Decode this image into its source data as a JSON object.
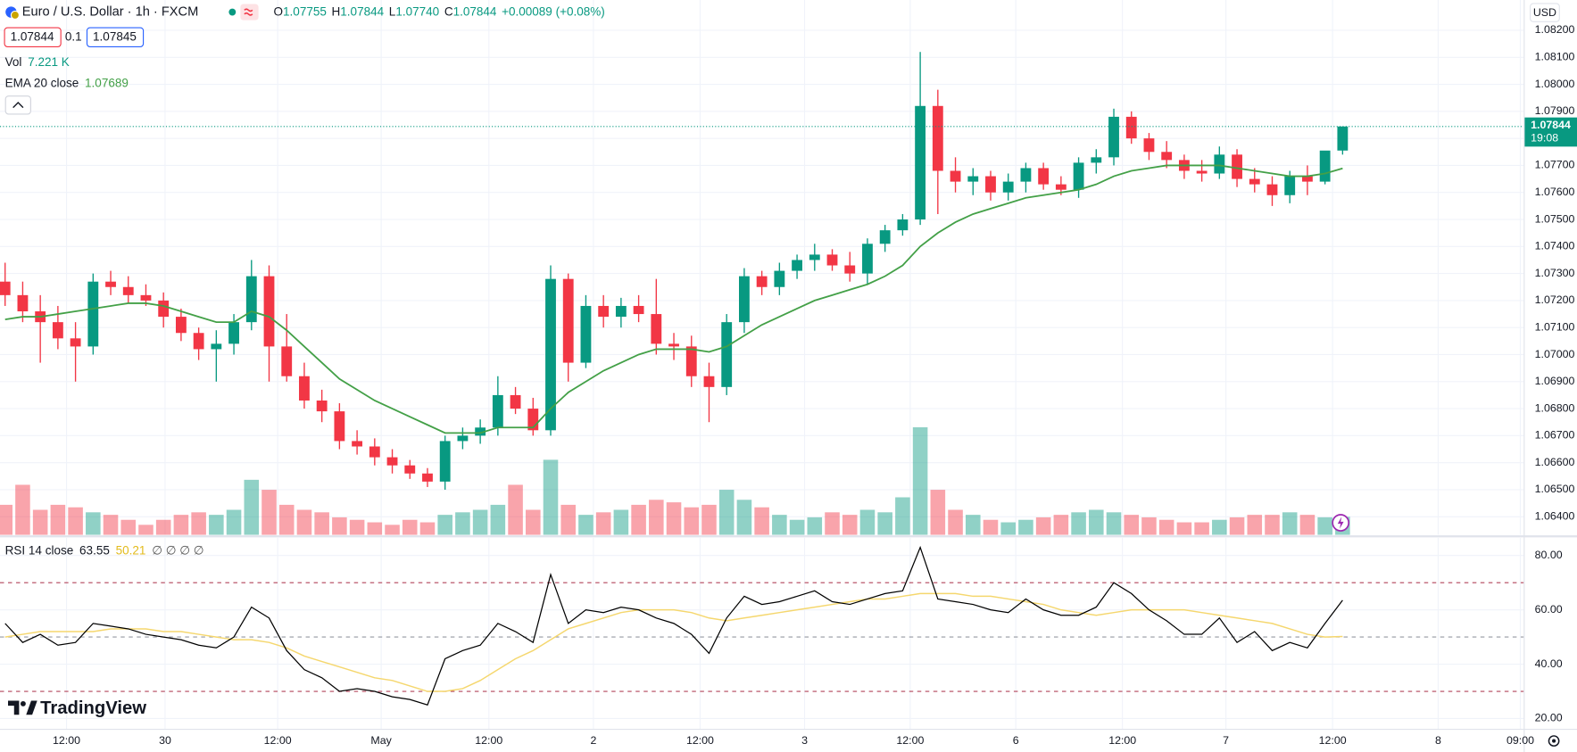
{
  "header": {
    "symbol": "Euro / U.S. Dollar · 1h · FXCM",
    "ohlc": [
      {
        "label": "O",
        "value": "1.07755"
      },
      {
        "label": "H",
        "value": "1.07844"
      },
      {
        "label": "L",
        "value": "1.07740"
      },
      {
        "label": "C",
        "value": "1.07844"
      }
    ],
    "change": "+0.00089 (+0.08%)",
    "bid": "1.07844",
    "spread": "0.1",
    "ask": "1.07845",
    "volume": {
      "label": "Vol",
      "value": "7.221 K"
    },
    "ema": {
      "label": "EMA 20 close",
      "value": "1.07689"
    },
    "currency": "USD",
    "logo": "TradingView"
  },
  "chart_data": [
    {
      "type": "candlestick",
      "xlim": [
        -0.29,
        86.29
      ],
      "ylim": [
        1.06333,
        1.08312
      ],
      "yticks": [
        {
          "value": 1.064,
          "label": "1.06400"
        },
        {
          "value": 1.065,
          "label": "1.06500"
        },
        {
          "value": 1.066,
          "label": "1.06600"
        },
        {
          "value": 1.067,
          "label": "1.06700"
        },
        {
          "value": 1.068,
          "label": "1.06800"
        },
        {
          "value": 1.069,
          "label": "1.06900"
        },
        {
          "value": 1.07,
          "label": "1.07000"
        },
        {
          "value": 1.071,
          "label": "1.07100"
        },
        {
          "value": 1.072,
          "label": "1.07200"
        },
        {
          "value": 1.073,
          "label": "1.07300"
        },
        {
          "value": 1.074,
          "label": "1.07400"
        },
        {
          "value": 1.075,
          "label": "1.07500"
        },
        {
          "value": 1.076,
          "label": "1.07600"
        },
        {
          "value": 1.077,
          "label": "1.07700"
        },
        {
          "value": 1.078,
          "label": "1.07800"
        },
        {
          "value": 1.079,
          "label": "1.07900"
        },
        {
          "value": 1.08,
          "label": "1.08000"
        },
        {
          "value": 1.081,
          "label": "1.08100"
        },
        {
          "value": 1.082,
          "label": "1.08200"
        }
      ],
      "grid": true,
      "up_color": "#089981",
      "down_color": "#f23645",
      "ema_color": "#43a047",
      "open": [
        1.0727,
        1.0722,
        1.0716,
        1.0712,
        1.0706,
        1.0703,
        1.0727,
        1.0725,
        1.0722,
        1.072,
        1.0714,
        1.0708,
        1.0702,
        1.0704,
        1.0712,
        1.0729,
        1.0703,
        1.0692,
        1.0683,
        1.0679,
        1.0668,
        1.0666,
        1.0662,
        1.0659,
        1.0656,
        1.0653,
        1.0668,
        1.067,
        1.0673,
        1.0685,
        1.068,
        1.0672,
        1.0728,
        1.0697,
        1.0718,
        1.0714,
        1.0718,
        1.0715,
        1.0704,
        1.0703,
        1.0692,
        1.0688,
        1.0712,
        1.0729,
        1.0725,
        1.0731,
        1.0735,
        1.0737,
        1.0733,
        1.073,
        1.0741,
        1.0746,
        1.075,
        1.0792,
        1.0768,
        1.0764,
        1.0766,
        1.076,
        1.0764,
        1.0769,
        1.0763,
        1.0761,
        1.0771,
        1.0773,
        1.0788,
        1.078,
        1.0775,
        1.0772,
        1.0768,
        1.0767,
        1.0774,
        1.0765,
        1.0763,
        1.0759,
        1.0766,
        1.0764,
        1.07755
      ],
      "high": [
        1.0734,
        1.0727,
        1.0722,
        1.0718,
        1.0712,
        1.073,
        1.0731,
        1.0729,
        1.0726,
        1.0723,
        1.0717,
        1.071,
        1.0709,
        1.0715,
        1.0735,
        1.0733,
        1.0715,
        1.0697,
        1.0687,
        1.0682,
        1.0672,
        1.0669,
        1.0665,
        1.0661,
        1.0658,
        1.067,
        1.0673,
        1.0676,
        1.0692,
        1.0688,
        1.0684,
        1.0733,
        1.073,
        1.0722,
        1.0722,
        1.0721,
        1.0722,
        1.0728,
        1.0708,
        1.0707,
        1.0697,
        1.0715,
        1.0732,
        1.0731,
        1.0734,
        1.0737,
        1.0741,
        1.0739,
        1.0738,
        1.0743,
        1.0748,
        1.0752,
        1.0812,
        1.0798,
        1.0773,
        1.0769,
        1.0768,
        1.0767,
        1.0771,
        1.0771,
        1.0766,
        1.0773,
        1.0776,
        1.0791,
        1.079,
        1.0782,
        1.0779,
        1.0774,
        1.0772,
        1.0777,
        1.0776,
        1.0769,
        1.0766,
        1.0768,
        1.077,
        1.0775,
        1.07844
      ],
      "low": [
        1.0718,
        1.0712,
        1.0697,
        1.0702,
        1.069,
        1.07,
        1.0722,
        1.0719,
        1.0718,
        1.071,
        1.0705,
        1.0698,
        1.069,
        1.07,
        1.0709,
        1.069,
        1.069,
        1.068,
        1.0675,
        1.0665,
        1.0663,
        1.0659,
        1.0656,
        1.0654,
        1.0651,
        1.065,
        1.0665,
        1.0667,
        1.067,
        1.0678,
        1.067,
        1.067,
        1.069,
        1.0695,
        1.071,
        1.071,
        1.0712,
        1.07,
        1.0698,
        1.0688,
        1.0675,
        1.0685,
        1.0708,
        1.0722,
        1.0722,
        1.0728,
        1.0731,
        1.0731,
        1.0727,
        1.0726,
        1.0738,
        1.0744,
        1.0748,
        1.0752,
        1.076,
        1.0759,
        1.0757,
        1.0757,
        1.076,
        1.0761,
        1.0759,
        1.0758,
        1.0767,
        1.077,
        1.0778,
        1.0772,
        1.0769,
        1.0765,
        1.0764,
        1.0765,
        1.0762,
        1.076,
        1.0755,
        1.0756,
        1.0759,
        1.0763,
        1.0774
      ],
      "close": [
        1.0722,
        1.0716,
        1.0712,
        1.0706,
        1.0703,
        1.0727,
        1.0725,
        1.0722,
        1.072,
        1.0714,
        1.0708,
        1.0702,
        1.0704,
        1.0712,
        1.0729,
        1.0703,
        1.0692,
        1.0683,
        1.0679,
        1.0668,
        1.0666,
        1.0662,
        1.0659,
        1.0656,
        1.0653,
        1.0668,
        1.067,
        1.0673,
        1.0685,
        1.068,
        1.0672,
        1.0728,
        1.0697,
        1.0718,
        1.0714,
        1.0718,
        1.0715,
        1.0704,
        1.0703,
        1.0692,
        1.0688,
        1.0712,
        1.0729,
        1.0725,
        1.0731,
        1.0735,
        1.0737,
        1.0733,
        1.073,
        1.0741,
        1.0746,
        1.075,
        1.0792,
        1.0768,
        1.0764,
        1.0766,
        1.076,
        1.0764,
        1.0769,
        1.0763,
        1.0761,
        1.0771,
        1.0773,
        1.0788,
        1.078,
        1.0775,
        1.0772,
        1.0768,
        1.0767,
        1.0774,
        1.0765,
        1.0763,
        1.0759,
        1.0766,
        1.0764,
        1.07755,
        1.07844
      ],
      "volume": [
        12,
        20,
        10,
        12,
        11,
        9,
        8,
        6,
        4,
        6,
        8,
        9,
        8,
        10,
        22,
        18,
        12,
        10,
        9,
        7,
        6,
        5,
        4,
        6,
        5,
        8,
        9,
        10,
        12,
        20,
        10,
        30,
        12,
        8,
        9,
        10,
        12,
        14,
        13,
        11,
        12,
        18,
        14,
        11,
        8,
        6,
        7,
        9,
        8,
        10,
        9,
        15,
        43,
        18,
        10,
        8,
        6,
        5,
        6,
        7,
        8,
        9,
        10,
        9,
        8,
        7,
        6,
        5,
        5,
        6,
        7,
        8,
        8,
        9,
        8,
        7,
        7.221
      ],
      "ema": [
        1.0713,
        1.0714,
        1.0714,
        1.0715,
        1.0716,
        1.0717,
        1.0718,
        1.0719,
        1.0719,
        1.0718,
        1.0716,
        1.0714,
        1.0712,
        1.0712,
        1.0716,
        1.0714,
        1.0709,
        1.0703,
        1.0697,
        1.0691,
        1.0687,
        1.0683,
        1.068,
        1.0677,
        1.0674,
        1.0671,
        1.0671,
        1.0671,
        1.0673,
        1.0673,
        1.0673,
        1.068,
        1.0686,
        1.069,
        1.0694,
        1.0697,
        1.07,
        1.0702,
        1.0702,
        1.0702,
        1.0701,
        1.0703,
        1.0707,
        1.0711,
        1.0714,
        1.0717,
        1.072,
        1.0722,
        1.0724,
        1.0726,
        1.0729,
        1.0733,
        1.074,
        1.0745,
        1.0749,
        1.0752,
        1.0754,
        1.0756,
        1.0758,
        1.0759,
        1.076,
        1.0761,
        1.0763,
        1.0766,
        1.0768,
        1.0769,
        1.077,
        1.077,
        1.077,
        1.077,
        1.0769,
        1.0768,
        1.0767,
        1.0766,
        1.0766,
        1.0767,
        1.07689
      ],
      "last_price": {
        "value": 1.07844,
        "label": "1.07844"
      },
      "countdown": "19:08"
    },
    {
      "type": "line",
      "legend": {
        "label": "RSI 14 close",
        "values": [
          "63.55",
          "50.21"
        ],
        "extra": "∅ ∅ ∅ ∅"
      },
      "xlim": [
        -0.29,
        86.29
      ],
      "ylim": [
        16.2,
        86.5
      ],
      "xticks": [
        {
          "value": 3.49,
          "label": "12:00"
        },
        {
          "value": 9.09,
          "label": "30"
        },
        {
          "value": 15.49,
          "label": "12:00"
        },
        {
          "value": 21.37,
          "label": "May"
        },
        {
          "value": 27.49,
          "label": "12:00"
        },
        {
          "value": 33.43,
          "label": "2"
        },
        {
          "value": 39.49,
          "label": "12:00"
        },
        {
          "value": 45.43,
          "label": "3"
        },
        {
          "value": 51.43,
          "label": "12:00"
        },
        {
          "value": 57.43,
          "label": "6"
        },
        {
          "value": 63.49,
          "label": "12:00"
        },
        {
          "value": 69.37,
          "label": "7"
        },
        {
          "value": 75.43,
          "label": "12:00"
        },
        {
          "value": 81.43,
          "label": "8"
        },
        {
          "value": 86.1,
          "label": "09:00"
        }
      ],
      "yticks": [
        {
          "value": 20,
          "label": "20.00"
        },
        {
          "value": 40,
          "label": "40.00"
        },
        {
          "value": 60,
          "label": "60.00"
        },
        {
          "value": 80,
          "label": "80.00"
        }
      ],
      "levels": [
        {
          "value": 70,
          "color": "#b2445a"
        },
        {
          "value": 50,
          "color": "#9598a1"
        },
        {
          "value": 30,
          "color": "#b2445a"
        }
      ],
      "series": [
        {
          "color": "#000000",
          "values": [
            55,
            48,
            51,
            47,
            48,
            55,
            54,
            53,
            51,
            50,
            49,
            47,
            46,
            50,
            61,
            57,
            45,
            38,
            35,
            30,
            31,
            30,
            28,
            27,
            25,
            42,
            45,
            47,
            55,
            52,
            48,
            73,
            55,
            60,
            59,
            61,
            60,
            57,
            55,
            51,
            44,
            57,
            65,
            62,
            63,
            65,
            67,
            63,
            62,
            64,
            66,
            67,
            83,
            64,
            63,
            62,
            60,
            59,
            64,
            60,
            58,
            58,
            61,
            70,
            66,
            60,
            56,
            51,
            51,
            57,
            48,
            52,
            45,
            48,
            46,
            55,
            63.55
          ]
        },
        {
          "color": "#f5d76e",
          "values": [
            50,
            51,
            52,
            52,
            52,
            52,
            53,
            53,
            53,
            52,
            52,
            51,
            50,
            49,
            49,
            48,
            46,
            43,
            41,
            39,
            37,
            35,
            34,
            32,
            30,
            30,
            31,
            34,
            38,
            42,
            45,
            49,
            53,
            55,
            57,
            59,
            60,
            60,
            60,
            59,
            57,
            56,
            57,
            58,
            59,
            60,
            61,
            62,
            63,
            64,
            64,
            65,
            66,
            66,
            66,
            65,
            65,
            64,
            63,
            62,
            60,
            59,
            58,
            59,
            60,
            60,
            60,
            60,
            59,
            58,
            57,
            56,
            55,
            53,
            51,
            50,
            50.21
          ]
        }
      ]
    }
  ]
}
